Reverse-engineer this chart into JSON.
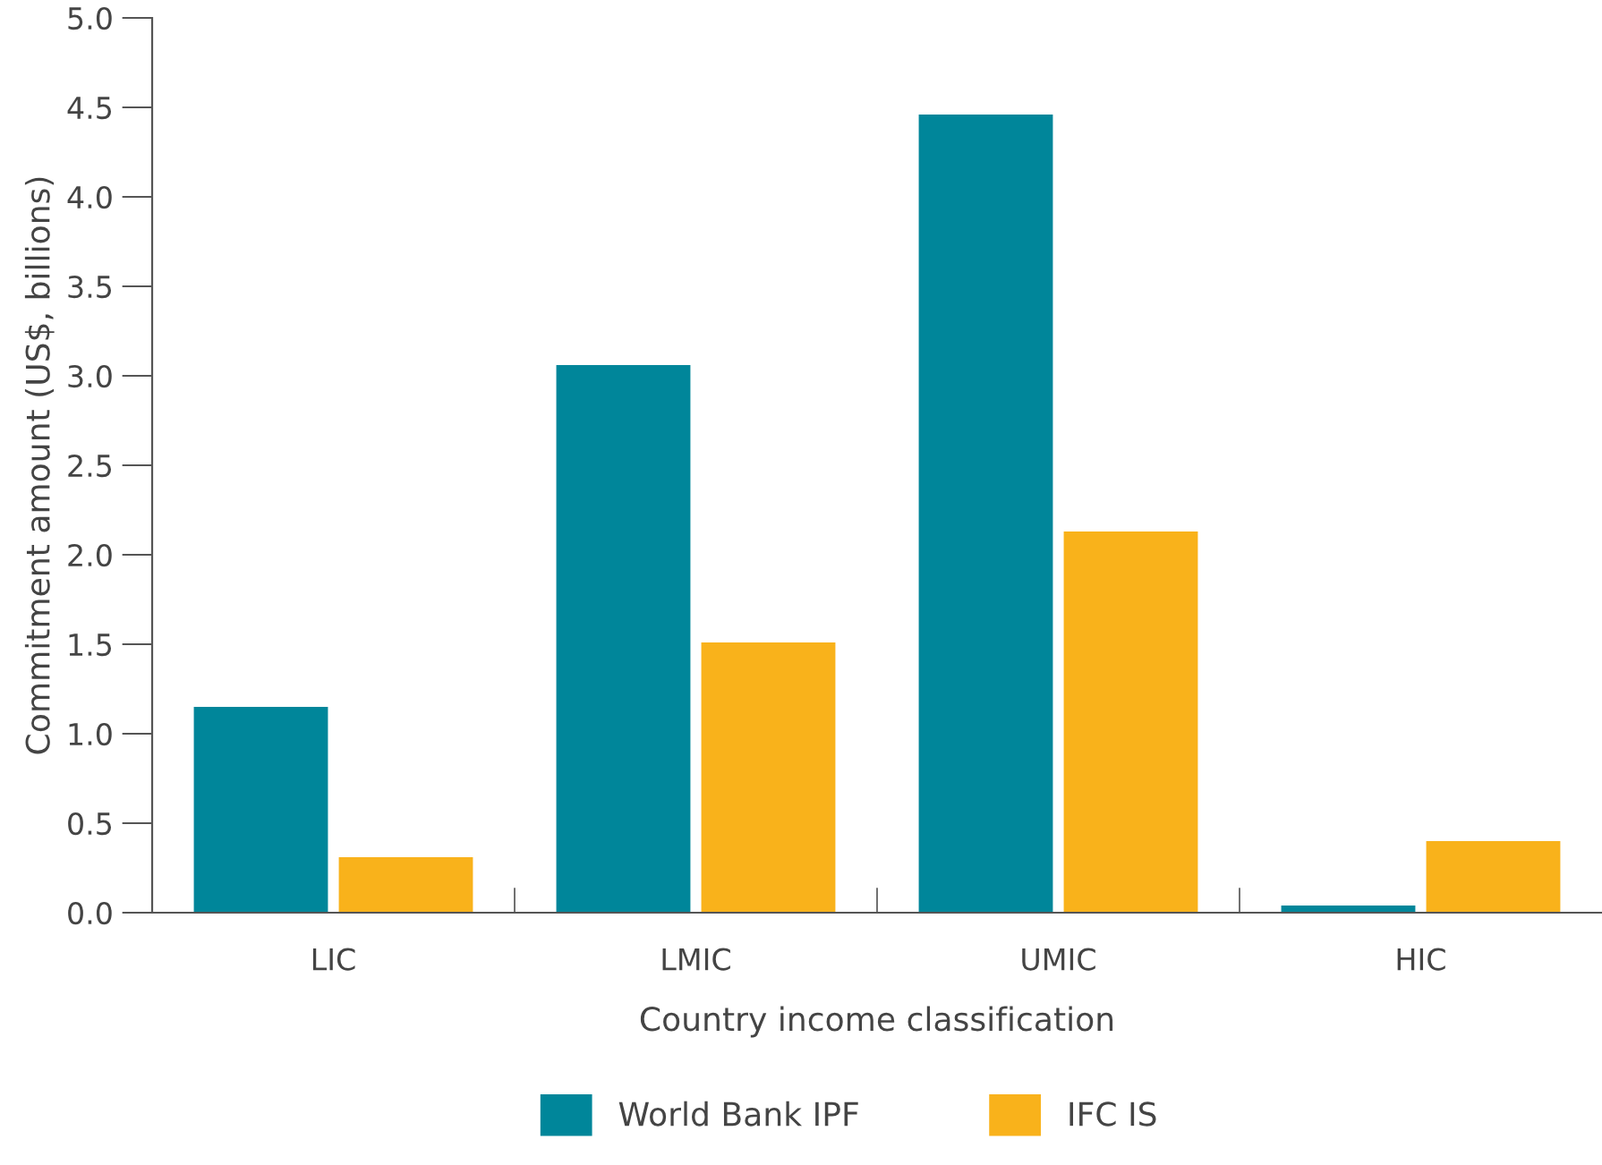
{
  "chart_data": {
    "type": "bar",
    "xlabel": "Country income classification",
    "ylabel": "Commitment amount (US$, billions)",
    "categories": [
      "LIC",
      "LMIC",
      "UMIC",
      "HIC"
    ],
    "series": [
      {
        "name": "World Bank IPF",
        "color": "#00869a",
        "values": [
          1.15,
          3.06,
          4.46,
          0.04
        ]
      },
      {
        "name": "IFC IS",
        "color": "#f9b21b",
        "values": [
          0.31,
          1.51,
          2.13,
          0.4
        ]
      }
    ],
    "ylim": [
      0,
      5
    ],
    "yticks": [
      {
        "value": 0,
        "label": "0.0"
      },
      {
        "value": 0.5,
        "label": "0.5"
      },
      {
        "value": 1,
        "label": "1.0"
      },
      {
        "value": 1.5,
        "label": "1.5"
      },
      {
        "value": 2,
        "label": "2.0"
      },
      {
        "value": 2.5,
        "label": "2.5"
      },
      {
        "value": 3,
        "label": "3.0"
      },
      {
        "value": 3.5,
        "label": "3.5"
      },
      {
        "value": 4,
        "label": "4.0"
      },
      {
        "value": 4.5,
        "label": "4.5"
      },
      {
        "value": 5,
        "label": "5.0"
      }
    ],
    "grid": false,
    "legend": "bottom"
  }
}
